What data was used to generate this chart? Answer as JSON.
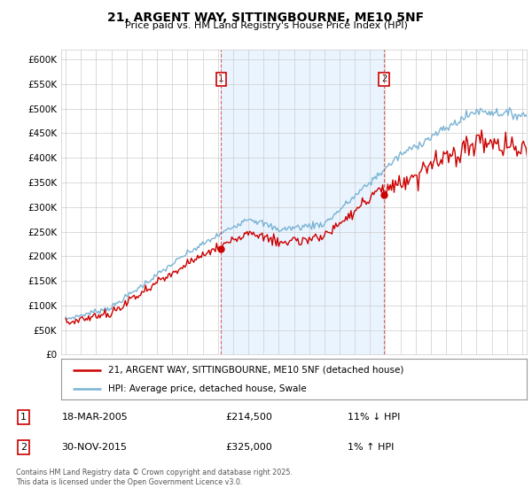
{
  "title": "21, ARGENT WAY, SITTINGBOURNE, ME10 5NF",
  "subtitle": "Price paid vs. HM Land Registry's House Price Index (HPI)",
  "ylabel_ticks": [
    "£0",
    "£50K",
    "£100K",
    "£150K",
    "£200K",
    "£250K",
    "£300K",
    "£350K",
    "£400K",
    "£450K",
    "£500K",
    "£550K",
    "£600K"
  ],
  "ytick_values": [
    0,
    50000,
    100000,
    150000,
    200000,
    250000,
    300000,
    350000,
    400000,
    450000,
    500000,
    550000,
    600000
  ],
  "ylim": [
    0,
    620000
  ],
  "xlim_start": 1994.7,
  "xlim_end": 2025.3,
  "transaction1_date": 2005.21,
  "transaction1_price": 214500,
  "transaction1_label": "1",
  "transaction2_date": 2015.92,
  "transaction2_price": 325000,
  "transaction2_label": "2",
  "hpi_color": "#7ab3d4",
  "price_color": "#cc0000",
  "shade_color": "#ddeeff",
  "vline_color": "#cc4444",
  "legend_label1": "21, ARGENT WAY, SITTINGBOURNE, ME10 5NF (detached house)",
  "legend_label2": "HPI: Average price, detached house, Swale",
  "annotation1_date": "18-MAR-2005",
  "annotation1_price": "£214,500",
  "annotation1_hpi": "11% ↓ HPI",
  "annotation2_date": "30-NOV-2015",
  "annotation2_price": "£325,000",
  "annotation2_hpi": "1% ↑ HPI",
  "footer": "Contains HM Land Registry data © Crown copyright and database right 2025.\nThis data is licensed under the Open Government Licence v3.0.",
  "background_color": "#ffffff",
  "grid_color": "#cccccc"
}
